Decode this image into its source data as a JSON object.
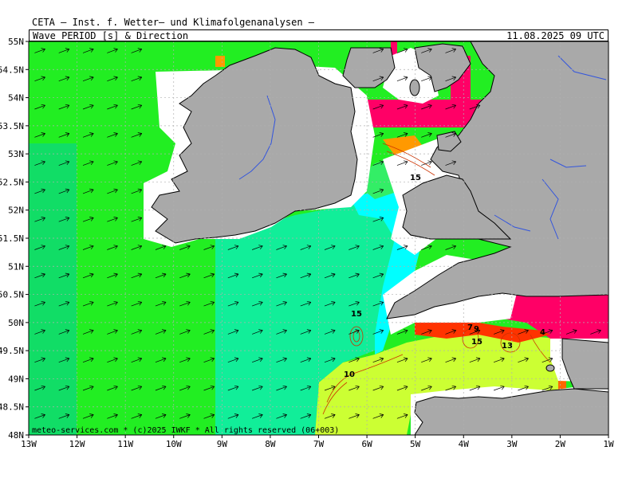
{
  "header": {
    "title": "CETA — Inst. f. Wetter— und Klimafolgenanalysen —",
    "subtitle": "Wave_PERIOD_[s]_&_Direction",
    "timestamp": "11.08.2025 09 UTC"
  },
  "axes": {
    "lat_labels": [
      "55N",
      "54.5N",
      "54N",
      "53.5N",
      "53N",
      "52.5N",
      "52N",
      "51.5N",
      "51N",
      "50.5N",
      "50N",
      "49.5N",
      "49N",
      "48.5N",
      "48N"
    ],
    "lon_labels": [
      "13W",
      "12W",
      "11W",
      "10W",
      "9W",
      "8W",
      "7W",
      "6W",
      "5W",
      "4W",
      "3W",
      "2W",
      "1W"
    ]
  },
  "contour_labels": [
    "15",
    "15",
    "10",
    "7",
    "9",
    "15",
    "13",
    "4"
  ],
  "credit": "meteo-services.com * (c)2025 IWKF * All rights reserved (06+003)",
  "colors": {
    "land": "#a9a9a9",
    "sea_green_bright": "#22ee22",
    "sea_green_mid": "#11dd66",
    "sea_teal": "#11ee99",
    "sea_cyan": "#00ffff",
    "sea_yellow_green": "#ccff33",
    "high_magenta": "#ff0066",
    "high_red": "#ff3300",
    "high_orange": "#ff9900",
    "river": "#3355dd",
    "grid": "#b0b0b0"
  },
  "map_data": {
    "region": "Ireland, Celtic Sea, Irish Sea, western English Channel",
    "lat_range": [
      48,
      55
    ],
    "lon_range": [
      -13,
      -1
    ],
    "field": "wave period (s) with direction arrows",
    "dominant_direction": "toward east-northeast"
  }
}
